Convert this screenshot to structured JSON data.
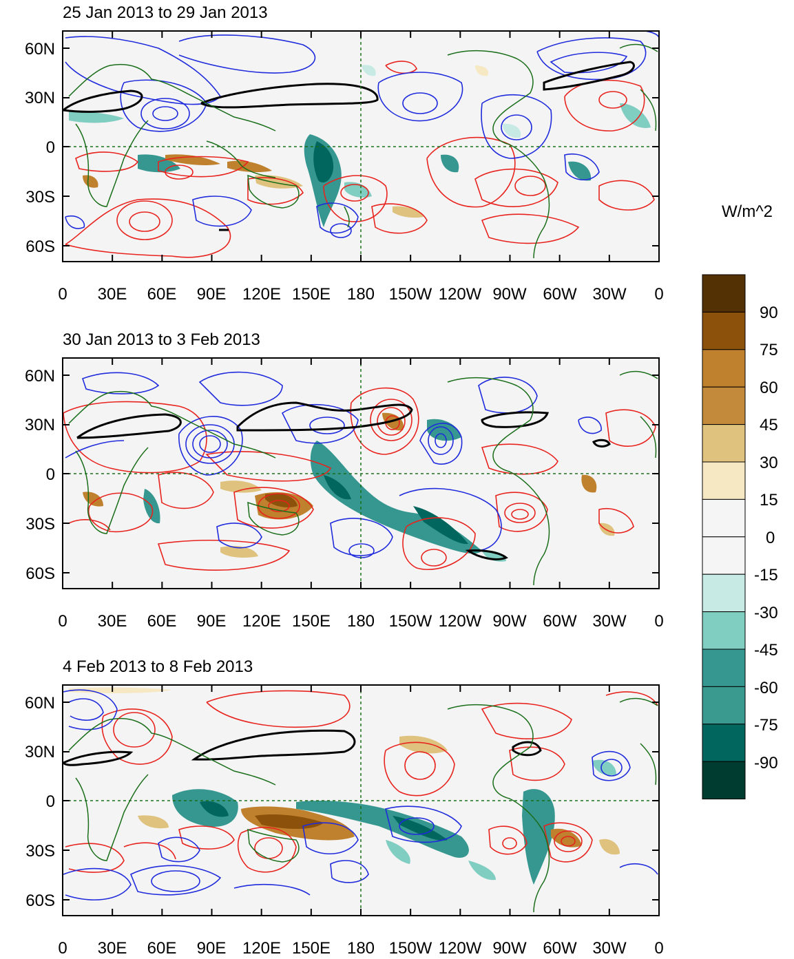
{
  "figure": {
    "panels": [
      {
        "title": "25 Jan 2013 to 29 Jan 2013"
      },
      {
        "title": "30 Jan 2013 to 3 Feb 2013"
      },
      {
        "title": "4 Feb 2013 to 8 Feb 2013"
      }
    ],
    "lat_ticks": [
      "60N",
      "30N",
      "0",
      "30S",
      "60S"
    ],
    "lon_ticks": [
      "0",
      "30E",
      "60E",
      "90E",
      "120E",
      "150E",
      "180",
      "150W",
      "120W",
      "90W",
      "60W",
      "30W",
      "0"
    ],
    "colorbar": {
      "units": "W/m^2",
      "labels": [
        "90",
        "75",
        "60",
        "45",
        "30",
        "15",
        "0",
        "-15",
        "-30",
        "-45",
        "-60",
        "-75",
        "-90"
      ],
      "colors": [
        "#543005",
        "#8c510a",
        "#bf812d",
        "#c28a3a",
        "#dfc27d",
        "#f6e8c3",
        "#f5f5f5",
        "#f5f5f5",
        "#c7eae5",
        "#80cdc1",
        "#35978f",
        "#3a9a90",
        "#01665e",
        "#003c30"
      ]
    },
    "colors": {
      "positive_contour": "#e8231e",
      "negative_contour": "#1f2bdc",
      "thick_contour": "#000000",
      "coastline": "#1a6e1a",
      "equator": "#1a6e1a",
      "background": "#f4f4f4"
    }
  }
}
